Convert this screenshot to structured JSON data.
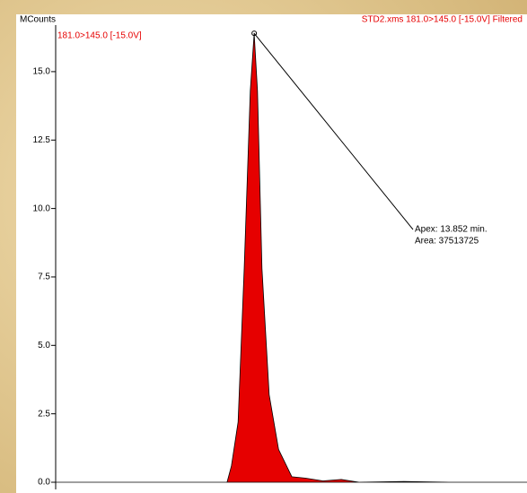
{
  "chart_data": {
    "type": "area",
    "y_label": "MCounts",
    "trace_label": "181.0>145.0 [-15.0V]",
    "file_label": "STD2.xms 181.0>145.0 [-15.0V] Filtered",
    "annotations": [
      "Apex: 13.852 min.",
      "Area: 37513725"
    ],
    "x": [
      13.494,
      13.803,
      13.811,
      13.823,
      13.834,
      13.845,
      13.852,
      13.858,
      13.866,
      13.879,
      13.896,
      13.92,
      13.944,
      13.976,
      14.009,
      14.041,
      14.122,
      14.203,
      14.344
    ],
    "values": [
      0,
      0,
      0.6,
      2.2,
      7.8,
      14.3,
      16.4,
      14.3,
      7.8,
      3.2,
      1.2,
      0.2,
      0.15,
      0.05,
      0.1,
      0,
      0.03,
      0,
      0
    ],
    "color": "#e60000",
    "xlim": [
      13.494,
      14.344
    ],
    "ylim": [
      0,
      16.7
    ],
    "yticks": [
      {
        "value": 0,
        "label": "0.0"
      },
      {
        "value": 2.5,
        "label": "2.5"
      },
      {
        "value": 5,
        "label": "5.0"
      },
      {
        "value": 7.5,
        "label": "7.5"
      },
      {
        "value": 10,
        "label": "10.0"
      },
      {
        "value": 12.5,
        "label": "12.5"
      },
      {
        "value": 15,
        "label": "15.0"
      }
    ]
  }
}
